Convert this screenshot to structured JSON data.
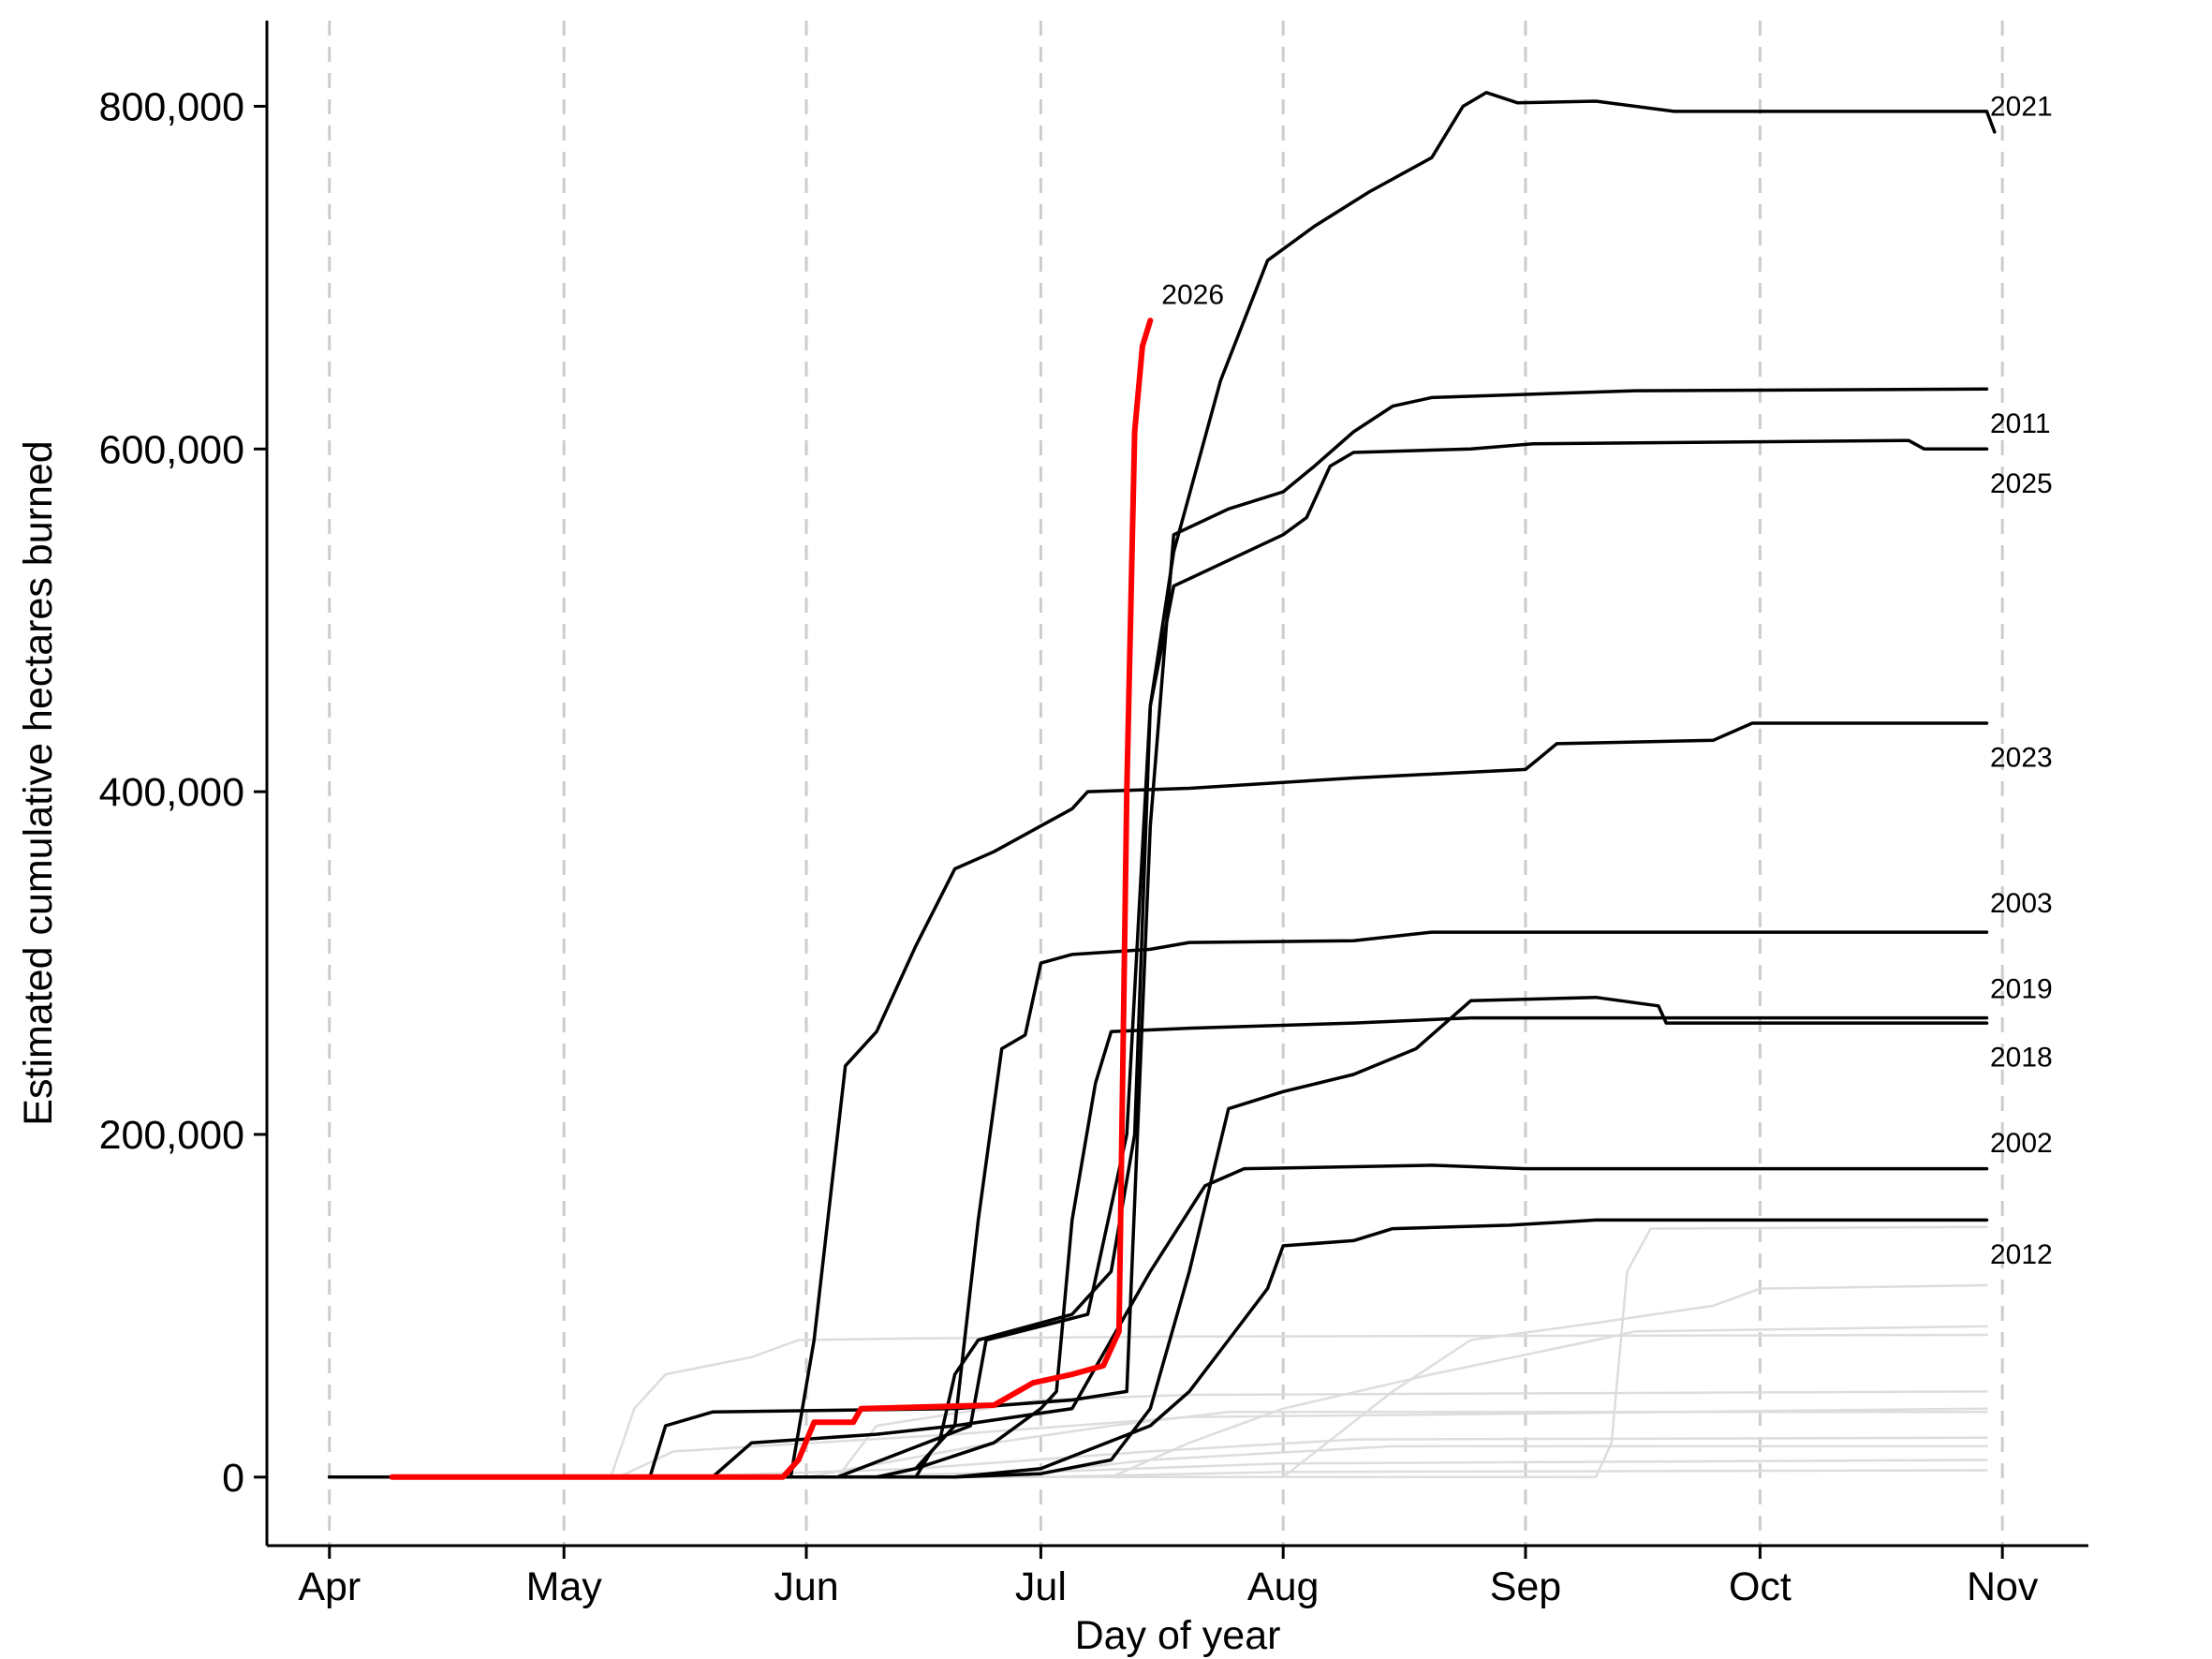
{
  "chart_data": {
    "type": "line",
    "title": "",
    "xlabel": "Day of year",
    "ylabel": "Estimated cumulative hectares burned",
    "x_unit": "month-day",
    "x_ticks": [
      {
        "label": "Apr",
        "x": "04-01"
      },
      {
        "label": "May",
        "x": "05-01"
      },
      {
        "label": "Jun",
        "x": "06-01"
      },
      {
        "label": "Jul",
        "x": "07-01"
      },
      {
        "label": "Aug",
        "x": "08-01"
      },
      {
        "label": "Sep",
        "x": "09-01"
      },
      {
        "label": "Oct",
        "x": "10-01"
      },
      {
        "label": "Nov",
        "x": "11-01"
      }
    ],
    "xlim": [
      "03-24",
      "11-12"
    ],
    "y_ticks": [
      {
        "label": "0",
        "value": 0
      },
      {
        "label": "200,000",
        "value": 200000
      },
      {
        "label": "400,000",
        "value": 400000
      },
      {
        "label": "600,000",
        "value": 600000
      },
      {
        "label": "800,000",
        "value": 800000
      }
    ],
    "ylim": [
      -40000,
      850000
    ],
    "grid": {
      "vertical_dashed_at_month_starts": true,
      "horizontal": false
    },
    "legend": "none",
    "colors": {
      "highlight": "#ff0000",
      "labeled": "#000000",
      "background": "#dddddd"
    },
    "series": [
      {
        "name": "2021",
        "role": "labeled",
        "label_y": 800000,
        "points": [
          [
            "04-01",
            0
          ],
          [
            "06-05",
            0
          ],
          [
            "06-22",
            30000
          ],
          [
            "06-24",
            80000
          ],
          [
            "07-07",
            95000
          ],
          [
            "07-12",
            200000
          ],
          [
            "07-15",
            450000
          ],
          [
            "07-18",
            540000
          ],
          [
            "07-24",
            640000
          ],
          [
            "07-30",
            710000
          ],
          [
            "08-05",
            730000
          ],
          [
            "08-12",
            750000
          ],
          [
            "08-20",
            770000
          ],
          [
            "08-24",
            800000
          ],
          [
            "08-27",
            808000
          ],
          [
            "08-31",
            802000
          ],
          [
            "09-10",
            803000
          ],
          [
            "09-20",
            797000
          ],
          [
            "10-30",
            797000
          ],
          [
            "10-31",
            785000
          ]
        ]
      },
      {
        "name": "2026",
        "role": "highlight",
        "label_y": 690000,
        "points": [
          [
            "04-09",
            0
          ],
          [
            "05-15",
            0
          ],
          [
            "05-29",
            0
          ],
          [
            "05-31",
            10000
          ],
          [
            "06-02",
            32000
          ],
          [
            "06-07",
            32000
          ],
          [
            "06-08",
            40000
          ],
          [
            "06-25",
            42000
          ],
          [
            "06-30",
            55000
          ],
          [
            "07-05",
            60000
          ],
          [
            "07-09",
            65000
          ],
          [
            "07-10",
            75000
          ],
          [
            "07-11",
            85000
          ],
          [
            "07-12",
            400000
          ],
          [
            "07-13",
            610000
          ],
          [
            "07-14",
            660000
          ],
          [
            "07-15",
            675000
          ]
        ]
      },
      {
        "name": "2011",
        "role": "labeled",
        "label_y": 615000,
        "points": [
          [
            "04-01",
            0
          ],
          [
            "05-12",
            0
          ],
          [
            "05-14",
            30000
          ],
          [
            "05-20",
            38000
          ],
          [
            "06-20",
            40000
          ],
          [
            "07-05",
            45000
          ],
          [
            "07-12",
            50000
          ],
          [
            "07-15",
            380000
          ],
          [
            "07-18",
            550000
          ],
          [
            "07-25",
            565000
          ],
          [
            "08-01",
            575000
          ],
          [
            "08-05",
            590000
          ],
          [
            "08-10",
            610000
          ],
          [
            "08-15",
            625000
          ],
          [
            "08-20",
            630000
          ],
          [
            "09-15",
            634000
          ],
          [
            "10-30",
            635000
          ]
        ]
      },
      {
        "name": "2025",
        "role": "labeled",
        "label_y": 580000,
        "points": [
          [
            "04-01",
            0
          ],
          [
            "06-10",
            0
          ],
          [
            "06-15",
            5000
          ],
          [
            "06-18",
            20000
          ],
          [
            "06-20",
            60000
          ],
          [
            "06-23",
            80000
          ],
          [
            "07-05",
            95000
          ],
          [
            "07-10",
            120000
          ],
          [
            "07-13",
            200000
          ],
          [
            "07-15",
            450000
          ],
          [
            "07-18",
            520000
          ],
          [
            "07-25",
            535000
          ],
          [
            "08-01",
            550000
          ],
          [
            "08-04",
            560000
          ],
          [
            "08-07",
            590000
          ],
          [
            "08-10",
            598000
          ],
          [
            "08-25",
            600000
          ],
          [
            "09-02",
            603000
          ],
          [
            "10-20",
            605000
          ],
          [
            "10-22",
            600000
          ],
          [
            "10-30",
            600000
          ]
        ]
      },
      {
        "name": "2023",
        "role": "labeled",
        "label_y": 420000,
        "points": [
          [
            "04-01",
            0
          ],
          [
            "05-30",
            0
          ],
          [
            "06-02",
            80000
          ],
          [
            "06-06",
            240000
          ],
          [
            "06-10",
            260000
          ],
          [
            "06-15",
            310000
          ],
          [
            "06-20",
            355000
          ],
          [
            "06-25",
            365000
          ],
          [
            "07-01",
            380000
          ],
          [
            "07-05",
            390000
          ],
          [
            "07-07",
            400000
          ],
          [
            "07-20",
            402000
          ],
          [
            "08-10",
            408000
          ],
          [
            "09-01",
            413000
          ],
          [
            "09-05",
            428000
          ],
          [
            "09-25",
            430000
          ],
          [
            "09-30",
            440000
          ],
          [
            "10-30",
            440000
          ]
        ]
      },
      {
        "name": "2003",
        "role": "labeled",
        "label_y": 335000,
        "points": [
          [
            "04-01",
            0
          ],
          [
            "06-15",
            0
          ],
          [
            "06-17",
            15000
          ],
          [
            "06-20",
            30000
          ],
          [
            "06-23",
            150000
          ],
          [
            "06-26",
            250000
          ],
          [
            "06-29",
            258000
          ],
          [
            "07-01",
            300000
          ],
          [
            "07-05",
            305000
          ],
          [
            "07-15",
            308000
          ],
          [
            "07-20",
            312000
          ],
          [
            "08-10",
            313000
          ],
          [
            "08-20",
            318000
          ],
          [
            "10-30",
            318000
          ]
        ]
      },
      {
        "name": "2019",
        "role": "labeled",
        "label_y": 285000,
        "points": [
          [
            "04-01",
            0
          ],
          [
            "06-10",
            0
          ],
          [
            "06-15",
            5000
          ],
          [
            "06-25",
            20000
          ],
          [
            "07-01",
            40000
          ],
          [
            "07-03",
            50000
          ],
          [
            "07-05",
            150000
          ],
          [
            "07-08",
            230000
          ],
          [
            "07-10",
            260000
          ],
          [
            "07-20",
            262000
          ],
          [
            "08-10",
            265000
          ],
          [
            "08-25",
            268000
          ],
          [
            "10-30",
            268000
          ]
        ]
      },
      {
        "name": "2018",
        "role": "labeled",
        "label_y": 245000,
        "points": [
          [
            "04-01",
            0
          ],
          [
            "06-20",
            0
          ],
          [
            "07-01",
            2000
          ],
          [
            "07-10",
            10000
          ],
          [
            "07-15",
            40000
          ],
          [
            "07-20",
            120000
          ],
          [
            "07-25",
            215000
          ],
          [
            "08-01",
            225000
          ],
          [
            "08-10",
            235000
          ],
          [
            "08-18",
            250000
          ],
          [
            "08-23",
            270000
          ],
          [
            "08-25",
            278000
          ],
          [
            "09-10",
            280000
          ],
          [
            "09-18",
            275000
          ],
          [
            "09-19",
            265000
          ],
          [
            "10-30",
            265000
          ]
        ]
      },
      {
        "name": "2002",
        "role": "labeled",
        "label_y": 195000,
        "points": [
          [
            "04-01",
            0
          ],
          [
            "05-20",
            0
          ],
          [
            "05-25",
            20000
          ],
          [
            "06-10",
            25000
          ],
          [
            "06-20",
            30000
          ],
          [
            "07-05",
            40000
          ],
          [
            "07-10",
            80000
          ],
          [
            "07-15",
            120000
          ],
          [
            "07-22",
            170000
          ],
          [
            "07-27",
            180000
          ],
          [
            "08-20",
            182000
          ],
          [
            "09-01",
            180000
          ],
          [
            "10-30",
            180000
          ]
        ]
      },
      {
        "name": "2012",
        "role": "labeled",
        "label_y": 130000,
        "points": [
          [
            "04-01",
            0
          ],
          [
            "06-20",
            0
          ],
          [
            "07-01",
            5000
          ],
          [
            "07-15",
            30000
          ],
          [
            "07-20",
            50000
          ],
          [
            "07-25",
            80000
          ],
          [
            "07-30",
            110000
          ],
          [
            "08-01",
            135000
          ],
          [
            "08-10",
            138000
          ],
          [
            "08-15",
            145000
          ],
          [
            "08-30",
            147000
          ],
          [
            "09-10",
            150000
          ],
          [
            "10-30",
            150000
          ]
        ]
      },
      {
        "name": "",
        "role": "background",
        "points": [
          [
            "04-01",
            0
          ],
          [
            "09-10",
            0
          ],
          [
            "09-12",
            20000
          ],
          [
            "09-14",
            120000
          ],
          [
            "09-17",
            145000
          ],
          [
            "10-30",
            146000
          ]
        ]
      },
      {
        "name": "",
        "role": "background",
        "points": [
          [
            "04-01",
            0
          ],
          [
            "08-01",
            0
          ],
          [
            "08-15",
            50000
          ],
          [
            "08-25",
            80000
          ],
          [
            "09-10",
            90000
          ],
          [
            "09-25",
            100000
          ],
          [
            "10-01",
            110000
          ],
          [
            "10-30",
            112000
          ]
        ]
      },
      {
        "name": "",
        "role": "background",
        "points": [
          [
            "04-01",
            0
          ],
          [
            "05-07",
            0
          ],
          [
            "05-10",
            40000
          ],
          [
            "05-14",
            60000
          ],
          [
            "05-25",
            70000
          ],
          [
            "05-31",
            80000
          ],
          [
            "06-15",
            81000
          ],
          [
            "07-20",
            82000
          ],
          [
            "10-30",
            83000
          ]
        ]
      },
      {
        "name": "",
        "role": "background",
        "points": [
          [
            "04-01",
            0
          ],
          [
            "07-10",
            0
          ],
          [
            "07-20",
            20000
          ],
          [
            "08-01",
            40000
          ],
          [
            "08-20",
            60000
          ],
          [
            "09-10",
            80000
          ],
          [
            "09-15",
            85000
          ],
          [
            "10-30",
            88000
          ]
        ]
      },
      {
        "name": "",
        "role": "background",
        "points": [
          [
            "04-01",
            0
          ],
          [
            "06-05",
            0
          ],
          [
            "06-10",
            30000
          ],
          [
            "07-01",
            45000
          ],
          [
            "07-20",
            48000
          ],
          [
            "10-30",
            50000
          ]
        ]
      },
      {
        "name": "",
        "role": "background",
        "points": [
          [
            "04-01",
            0
          ],
          [
            "05-08",
            0
          ],
          [
            "05-15",
            15000
          ],
          [
            "06-20",
            25000
          ],
          [
            "07-20",
            35000
          ],
          [
            "10-30",
            40000
          ]
        ]
      },
      {
        "name": "",
        "role": "background",
        "points": [
          [
            "04-01",
            0
          ],
          [
            "06-01",
            0
          ],
          [
            "06-25",
            20000
          ],
          [
            "07-10",
            30000
          ],
          [
            "07-25",
            38000
          ],
          [
            "10-30",
            38000
          ]
        ]
      },
      {
        "name": "",
        "role": "background",
        "points": [
          [
            "04-01",
            0
          ],
          [
            "05-15",
            0
          ],
          [
            "06-15",
            5000
          ],
          [
            "07-15",
            15000
          ],
          [
            "08-10",
            22000
          ],
          [
            "10-30",
            23000
          ]
        ]
      },
      {
        "name": "",
        "role": "background",
        "points": [
          [
            "04-01",
            0
          ],
          [
            "06-25",
            0
          ],
          [
            "07-15",
            10000
          ],
          [
            "08-15",
            18000
          ],
          [
            "10-30",
            18000
          ]
        ]
      },
      {
        "name": "",
        "role": "background",
        "points": [
          [
            "04-01",
            0
          ],
          [
            "06-01",
            0
          ],
          [
            "07-01",
            3000
          ],
          [
            "08-01",
            8000
          ],
          [
            "10-30",
            10000
          ]
        ]
      },
      {
        "name": "",
        "role": "background",
        "points": [
          [
            "04-01",
            0
          ],
          [
            "07-01",
            0
          ],
          [
            "08-01",
            3000
          ],
          [
            "10-30",
            4000
          ]
        ]
      }
    ]
  }
}
